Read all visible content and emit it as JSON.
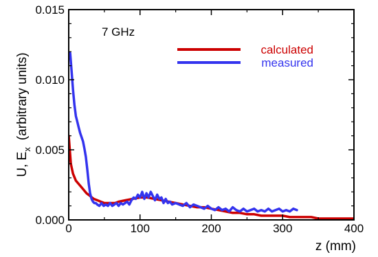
{
  "chart_data": {
    "type": "line",
    "annotation": "7 GHz",
    "xlabel": "z (mm)",
    "ylabel_main": "U, E",
    "ylabel_sub": "x",
    "ylabel_suffix": "(arbitrary units)",
    "xlim": [
      0,
      400
    ],
    "ylim": [
      0,
      0.015
    ],
    "x_ticks": [
      0,
      100,
      200,
      300,
      400
    ],
    "x_tick_labels": [
      "0",
      "100",
      "200",
      "300",
      "400"
    ],
    "y_ticks": [
      0,
      0.005,
      0.01,
      0.015
    ],
    "y_tick_labels": [
      "0.000",
      "0.005",
      "0.010",
      "0.015"
    ],
    "grid": false,
    "legend_position": "top-right",
    "series": [
      {
        "name": "calculated",
        "color": "#cc0000",
        "x": [
          0,
          3,
          6,
          10,
          15,
          20,
          25,
          30,
          35,
          40,
          45,
          50,
          55,
          60,
          65,
          70,
          80,
          90,
          100,
          110,
          120,
          130,
          140,
          150,
          160,
          170,
          180,
          190,
          200,
          210,
          220,
          230,
          240,
          250,
          260,
          270,
          280,
          290,
          300,
          310,
          320,
          330,
          340,
          350,
          360,
          370,
          380,
          390,
          400
        ],
        "y": [
          0.006,
          0.004,
          0.0033,
          0.0028,
          0.0025,
          0.0022,
          0.0019,
          0.0017,
          0.0015,
          0.0014,
          0.0013,
          0.0012,
          0.0012,
          0.0012,
          0.0012,
          0.0013,
          0.0014,
          0.0015,
          0.0016,
          0.0016,
          0.0015,
          0.0014,
          0.0013,
          0.0012,
          0.0011,
          0.001,
          0.0009,
          0.0009,
          0.0008,
          0.0007,
          0.0006,
          0.0005,
          0.0005,
          0.0004,
          0.0004,
          0.0003,
          0.0003,
          0.0003,
          0.0003,
          0.0002,
          0.0002,
          0.0002,
          0.0002,
          0.0001,
          0.0001,
          0.0001,
          0.0001,
          0.0001,
          0.0001
        ]
      },
      {
        "name": "measured",
        "color": "#3333ee",
        "x": [
          0,
          2,
          4,
          6,
          8,
          10,
          12,
          14,
          16,
          18,
          20,
          22,
          24,
          26,
          28,
          30,
          32,
          34,
          36,
          38,
          40,
          43,
          46,
          49,
          52,
          55,
          58,
          61,
          64,
          67,
          70,
          73,
          76,
          79,
          82,
          85,
          88,
          91,
          94,
          97,
          100,
          103,
          106,
          109,
          112,
          115,
          118,
          121,
          124,
          127,
          130,
          133,
          136,
          139,
          142,
          145,
          150,
          155,
          160,
          165,
          170,
          175,
          180,
          185,
          190,
          195,
          200,
          205,
          210,
          215,
          220,
          225,
          230,
          235,
          240,
          245,
          250,
          255,
          260,
          265,
          270,
          275,
          280,
          285,
          290,
          295,
          300,
          305,
          310,
          315,
          320
        ],
        "y": [
          0.0115,
          0.0119,
          0.0106,
          0.0093,
          0.0082,
          0.0074,
          0.007,
          0.0066,
          0.0062,
          0.0059,
          0.0056,
          0.0051,
          0.0045,
          0.0036,
          0.0026,
          0.0019,
          0.0015,
          0.0013,
          0.0012,
          0.0012,
          0.0011,
          0.001,
          0.0012,
          0.001,
          0.0011,
          0.001,
          0.0012,
          0.001,
          0.0011,
          0.0012,
          0.001,
          0.0012,
          0.0011,
          0.0012,
          0.0013,
          0.0011,
          0.0014,
          0.0016,
          0.0015,
          0.0018,
          0.0016,
          0.002,
          0.0015,
          0.0019,
          0.0016,
          0.002,
          0.0017,
          0.0014,
          0.0018,
          0.0015,
          0.0016,
          0.0012,
          0.0015,
          0.0012,
          0.0013,
          0.0011,
          0.0012,
          0.0011,
          0.001,
          0.0012,
          0.0009,
          0.0011,
          0.001,
          0.0009,
          0.0008,
          0.001,
          0.0008,
          0.0007,
          0.0009,
          0.0007,
          0.0008,
          0.0006,
          0.0009,
          0.0007,
          0.0006,
          0.0008,
          0.0006,
          0.0007,
          0.0008,
          0.0006,
          0.0007,
          0.0006,
          0.0008,
          0.0006,
          0.0007,
          0.0008,
          0.0006,
          0.0007,
          0.0006,
          0.0008,
          0.0007
        ]
      }
    ]
  }
}
